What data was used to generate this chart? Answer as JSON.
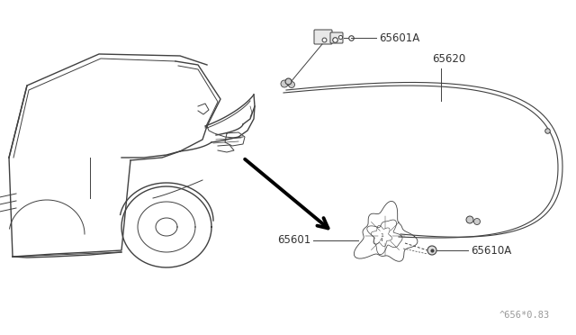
{
  "bg_color": "#ffffff",
  "line_color": "#404040",
  "label_color": "#333333",
  "fig_width": 6.4,
  "fig_height": 3.72,
  "watermark": "^656*0.83"
}
